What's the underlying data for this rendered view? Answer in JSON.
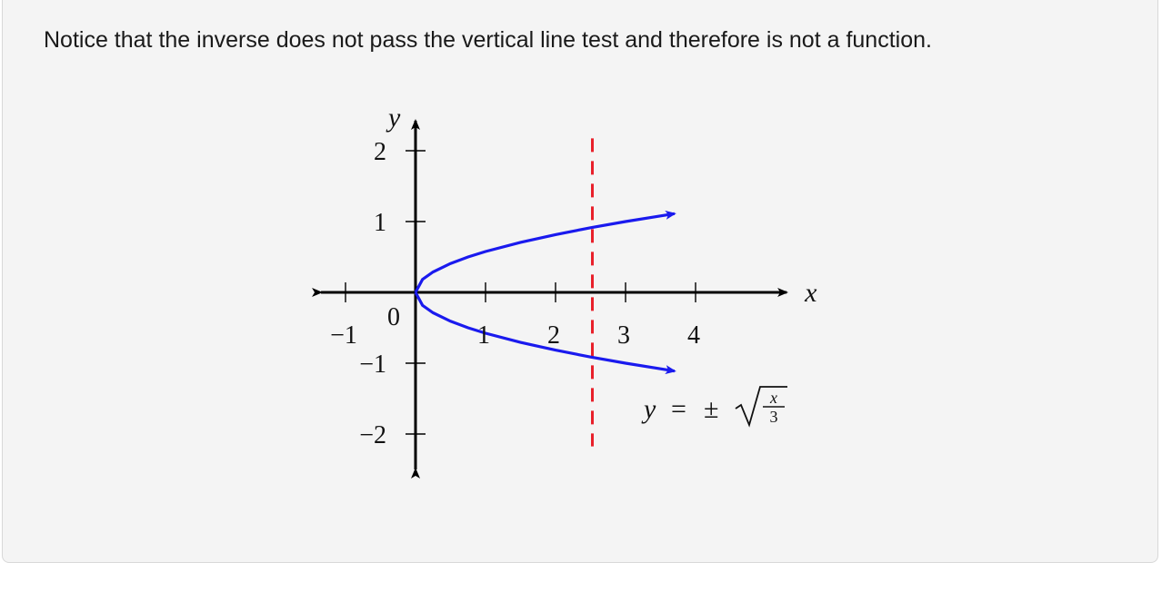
{
  "caption": "Notice that the inverse does not pass the vertical line test and therefore is not a function.",
  "chart_data": {
    "type": "line",
    "xlabel": "x",
    "ylabel": "y",
    "xlim": [
      -1.35,
      5.3
    ],
    "ylim": [
      -2.5,
      2.5
    ],
    "x_ticks": [
      -1,
      1,
      2,
      3,
      4
    ],
    "x_tick_labels": [
      "−1",
      "1",
      "2",
      "3",
      "4"
    ],
    "y_ticks": [
      -2,
      -1,
      1,
      2
    ],
    "y_tick_labels": [
      "−2",
      "−1",
      "1",
      "2"
    ],
    "origin_label": "0",
    "grid": false,
    "series": [
      {
        "name": "",
        "color": "#1a1aee",
        "x": [
          0,
          0.1,
          0.25,
          0.5,
          0.75,
          1,
          1.5,
          2,
          2.5,
          3,
          3.5,
          3.7
        ],
        "y": [
          0,
          0.183,
          0.289,
          0.408,
          0.5,
          0.577,
          0.707,
          0.816,
          0.913,
          1.0,
          1.08,
          1.111
        ]
      },
      {
        "name": "",
        "color": "#1a1aee",
        "x": [
          0,
          0.1,
          0.25,
          0.5,
          0.75,
          1,
          1.5,
          2,
          2.5,
          3,
          3.5,
          3.7
        ],
        "y": [
          0,
          -0.183,
          -0.289,
          -0.408,
          -0.5,
          -0.577,
          -0.707,
          -0.816,
          -0.913,
          -1.0,
          -1.08,
          -1.111
        ]
      }
    ],
    "vertical_line": {
      "x": 2.5,
      "y_range": [
        -2.2,
        2.2
      ],
      "color": "#e8202a",
      "style": "dashed"
    },
    "annotation": {
      "lhs": "y",
      "equals": "=",
      "pm": "±",
      "numerator": "x",
      "denominator": "3"
    }
  }
}
